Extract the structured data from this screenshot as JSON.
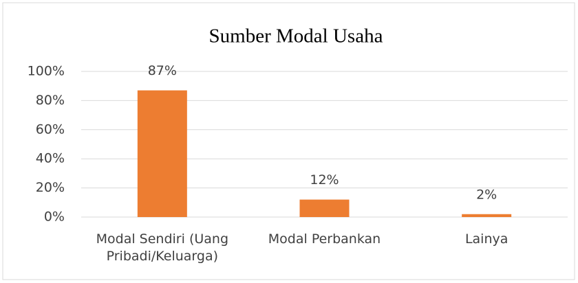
{
  "chart_data": {
    "type": "bar",
    "title": "Sumber Modal Usaha",
    "categories": [
      "Modal Sendiri (Uang Pribadi/Keluarga)",
      "Modal Perbankan",
      "Lainya"
    ],
    "values": [
      87,
      12,
      2
    ],
    "value_labels": [
      "87%",
      "12%",
      "2%"
    ],
    "color": "#ed7d31",
    "ylim": [
      0,
      100
    ],
    "yticks": [
      {
        "value": 0,
        "label": "0%"
      },
      {
        "value": 20,
        "label": "20%"
      },
      {
        "value": 40,
        "label": "40%"
      },
      {
        "value": 60,
        "label": "60%"
      },
      {
        "value": 80,
        "label": "80%"
      },
      {
        "value": 100,
        "label": "100%"
      }
    ],
    "grid": true
  }
}
